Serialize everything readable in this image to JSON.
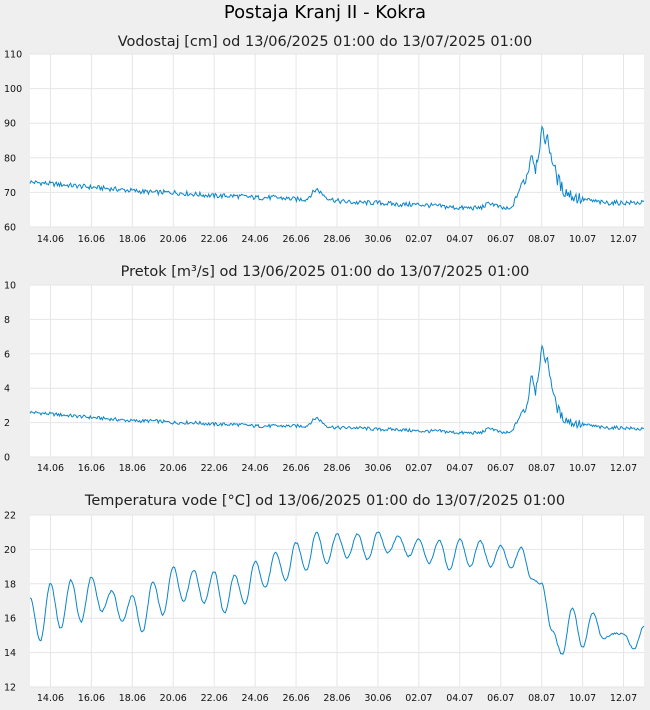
{
  "page": {
    "title": "Postaja Kranj II - Kokra"
  },
  "colors": {
    "line": "#0a85c9",
    "grid": "#e6e6e6",
    "plot_bg": "#ffffff",
    "page_bg": "#efefef"
  },
  "chart_data": [
    {
      "type": "line",
      "title": "Vodostaj [cm] od 13/06/2025 01:00 do 13/07/2025 01:00",
      "ylim": [
        60,
        110
      ],
      "yticks": [
        "110",
        "100",
        "90",
        "80",
        "70",
        "60"
      ],
      "x_range": [
        "13/06/2025 01:00",
        "13/07/2025 01:00"
      ],
      "xticks": [
        "14.06",
        "16.06",
        "18.06",
        "20.06",
        "22.06",
        "24.06",
        "26.06",
        "28.06",
        "30.06",
        "02.07",
        "04.07",
        "06.07",
        "08.07",
        "10.07",
        "12.07"
      ],
      "x": [
        "13.06",
        "14.06",
        "15.06",
        "16.06",
        "17.06",
        "18.06",
        "19.06",
        "20.06",
        "21.06",
        "22.06",
        "23.06",
        "24.06",
        "25.06",
        "26.06",
        "26.5",
        "27.06",
        "27.5",
        "28.06",
        "29.06",
        "30.06",
        "01.07",
        "02.07",
        "03.07",
        "04.07",
        "04.5",
        "05.07",
        "05.5",
        "06.07",
        "06.5",
        "07.07",
        "07.3",
        "07.5",
        "07.7",
        "08.07",
        "08.3",
        "08.5",
        "08.7",
        "09.07",
        "09.5",
        "10.07",
        "11.07",
        "12.07",
        "13.07"
      ],
      "values": [
        73,
        72.5,
        72,
        71.5,
        71,
        70.5,
        70,
        70,
        69.5,
        69,
        69,
        68.5,
        68.5,
        68,
        68,
        71,
        68.5,
        67.5,
        67,
        67,
        66.5,
        66.5,
        66,
        65.5,
        65.5,
        65.5,
        67,
        65.5,
        65,
        72,
        75,
        82,
        77,
        87,
        85,
        80,
        75,
        71,
        69,
        68,
        67,
        67,
        67
      ]
    },
    {
      "type": "line",
      "title": "Pretok [m³/s] od 13/06/2025 01:00 do 13/07/2025 01:00",
      "ylim": [
        0,
        10
      ],
      "yticks": [
        "10",
        "8",
        "6",
        "4",
        "2",
        "0"
      ],
      "x_range": [
        "13/06/2025 01:00",
        "13/07/2025 01:00"
      ],
      "xticks": [
        "14.06",
        "16.06",
        "18.06",
        "20.06",
        "22.06",
        "24.06",
        "26.06",
        "28.06",
        "30.06",
        "02.07",
        "04.07",
        "06.07",
        "08.07",
        "10.07",
        "12.07"
      ],
      "x": [
        "13.06",
        "14.06",
        "15.06",
        "16.06",
        "17.06",
        "18.06",
        "19.06",
        "20.06",
        "21.06",
        "22.06",
        "23.06",
        "24.06",
        "25.06",
        "26.06",
        "26.5",
        "27.06",
        "27.5",
        "28.06",
        "29.06",
        "30.06",
        "01.07",
        "02.07",
        "03.07",
        "04.07",
        "04.5",
        "05.07",
        "05.5",
        "06.07",
        "06.5",
        "07.07",
        "07.3",
        "07.5",
        "07.7",
        "08.07",
        "08.3",
        "08.5",
        "08.7",
        "09.07",
        "09.5",
        "10.07",
        "11.07",
        "12.07",
        "13.07"
      ],
      "values": [
        2.6,
        2.5,
        2.4,
        2.3,
        2.2,
        2.1,
        2.1,
        2.0,
        2.0,
        1.9,
        1.9,
        1.8,
        1.8,
        1.8,
        1.8,
        2.3,
        1.8,
        1.7,
        1.7,
        1.6,
        1.6,
        1.5,
        1.5,
        1.4,
        1.4,
        1.4,
        1.7,
        1.4,
        1.4,
        2.5,
        3.0,
        5.0,
        3.8,
        6.2,
        5.5,
        4.2,
        3.0,
        2.3,
        2.0,
        1.9,
        1.7,
        1.7,
        1.6
      ]
    },
    {
      "type": "line",
      "title": "Temperatura vode [°C] od 13/06/2025 01:00 do 13/07/2025 01:00",
      "ylim": [
        12,
        22
      ],
      "yticks": [
        "22",
        "20",
        "18",
        "16",
        "14",
        "12"
      ],
      "x_range": [
        "13/06/2025 01:00",
        "13/07/2025 01:00"
      ],
      "xticks": [
        "14.06",
        "16.06",
        "18.06",
        "20.06",
        "22.06",
        "24.06",
        "26.06",
        "28.06",
        "30.06",
        "02.07",
        "04.07",
        "06.07",
        "08.07",
        "10.07",
        "12.07"
      ],
      "x": [
        "13.06",
        "13.5",
        "14.06",
        "14.5",
        "15.06",
        "15.5",
        "16.06",
        "16.5",
        "17.06",
        "17.5",
        "18.06",
        "18.5",
        "19.06",
        "19.5",
        "20.06",
        "20.5",
        "21.06",
        "21.5",
        "22.06",
        "22.5",
        "23.06",
        "23.5",
        "24.06",
        "24.5",
        "25.06",
        "25.5",
        "26.06",
        "26.5",
        "27.06",
        "27.5",
        "28.06",
        "28.5",
        "29.06",
        "29.5",
        "30.06",
        "30.5",
        "01.07",
        "01.5",
        "02.07",
        "02.5",
        "03.07",
        "03.5",
        "04.07",
        "04.5",
        "05.07",
        "05.5",
        "06.07",
        "06.5",
        "07.07",
        "07.5",
        "08.07",
        "08.5",
        "09.07",
        "09.5",
        "10.07",
        "10.5",
        "11.07",
        "11.5",
        "12.07",
        "12.5",
        "13.07"
      ],
      "values": [
        17.2,
        14.7,
        18.0,
        15.4,
        18.2,
        15.8,
        18.4,
        16.4,
        17.6,
        15.8,
        17.3,
        15.2,
        18.1,
        16.2,
        19.0,
        17.0,
        18.8,
        16.9,
        18.7,
        16.3,
        18.5,
        16.8,
        19.3,
        17.8,
        19.8,
        18.2,
        20.4,
        18.8,
        21.0,
        19.2,
        20.9,
        19.5,
        20.9,
        19.4,
        21.0,
        19.8,
        20.8,
        19.6,
        20.6,
        19.2,
        20.5,
        18.8,
        20.6,
        19.0,
        20.5,
        19.0,
        20.2,
        18.9,
        20.1,
        18.3,
        18.0,
        15.3,
        13.9,
        16.6,
        14.3,
        16.3,
        14.8,
        15.1,
        15.1,
        14.2,
        15.5
      ]
    }
  ]
}
